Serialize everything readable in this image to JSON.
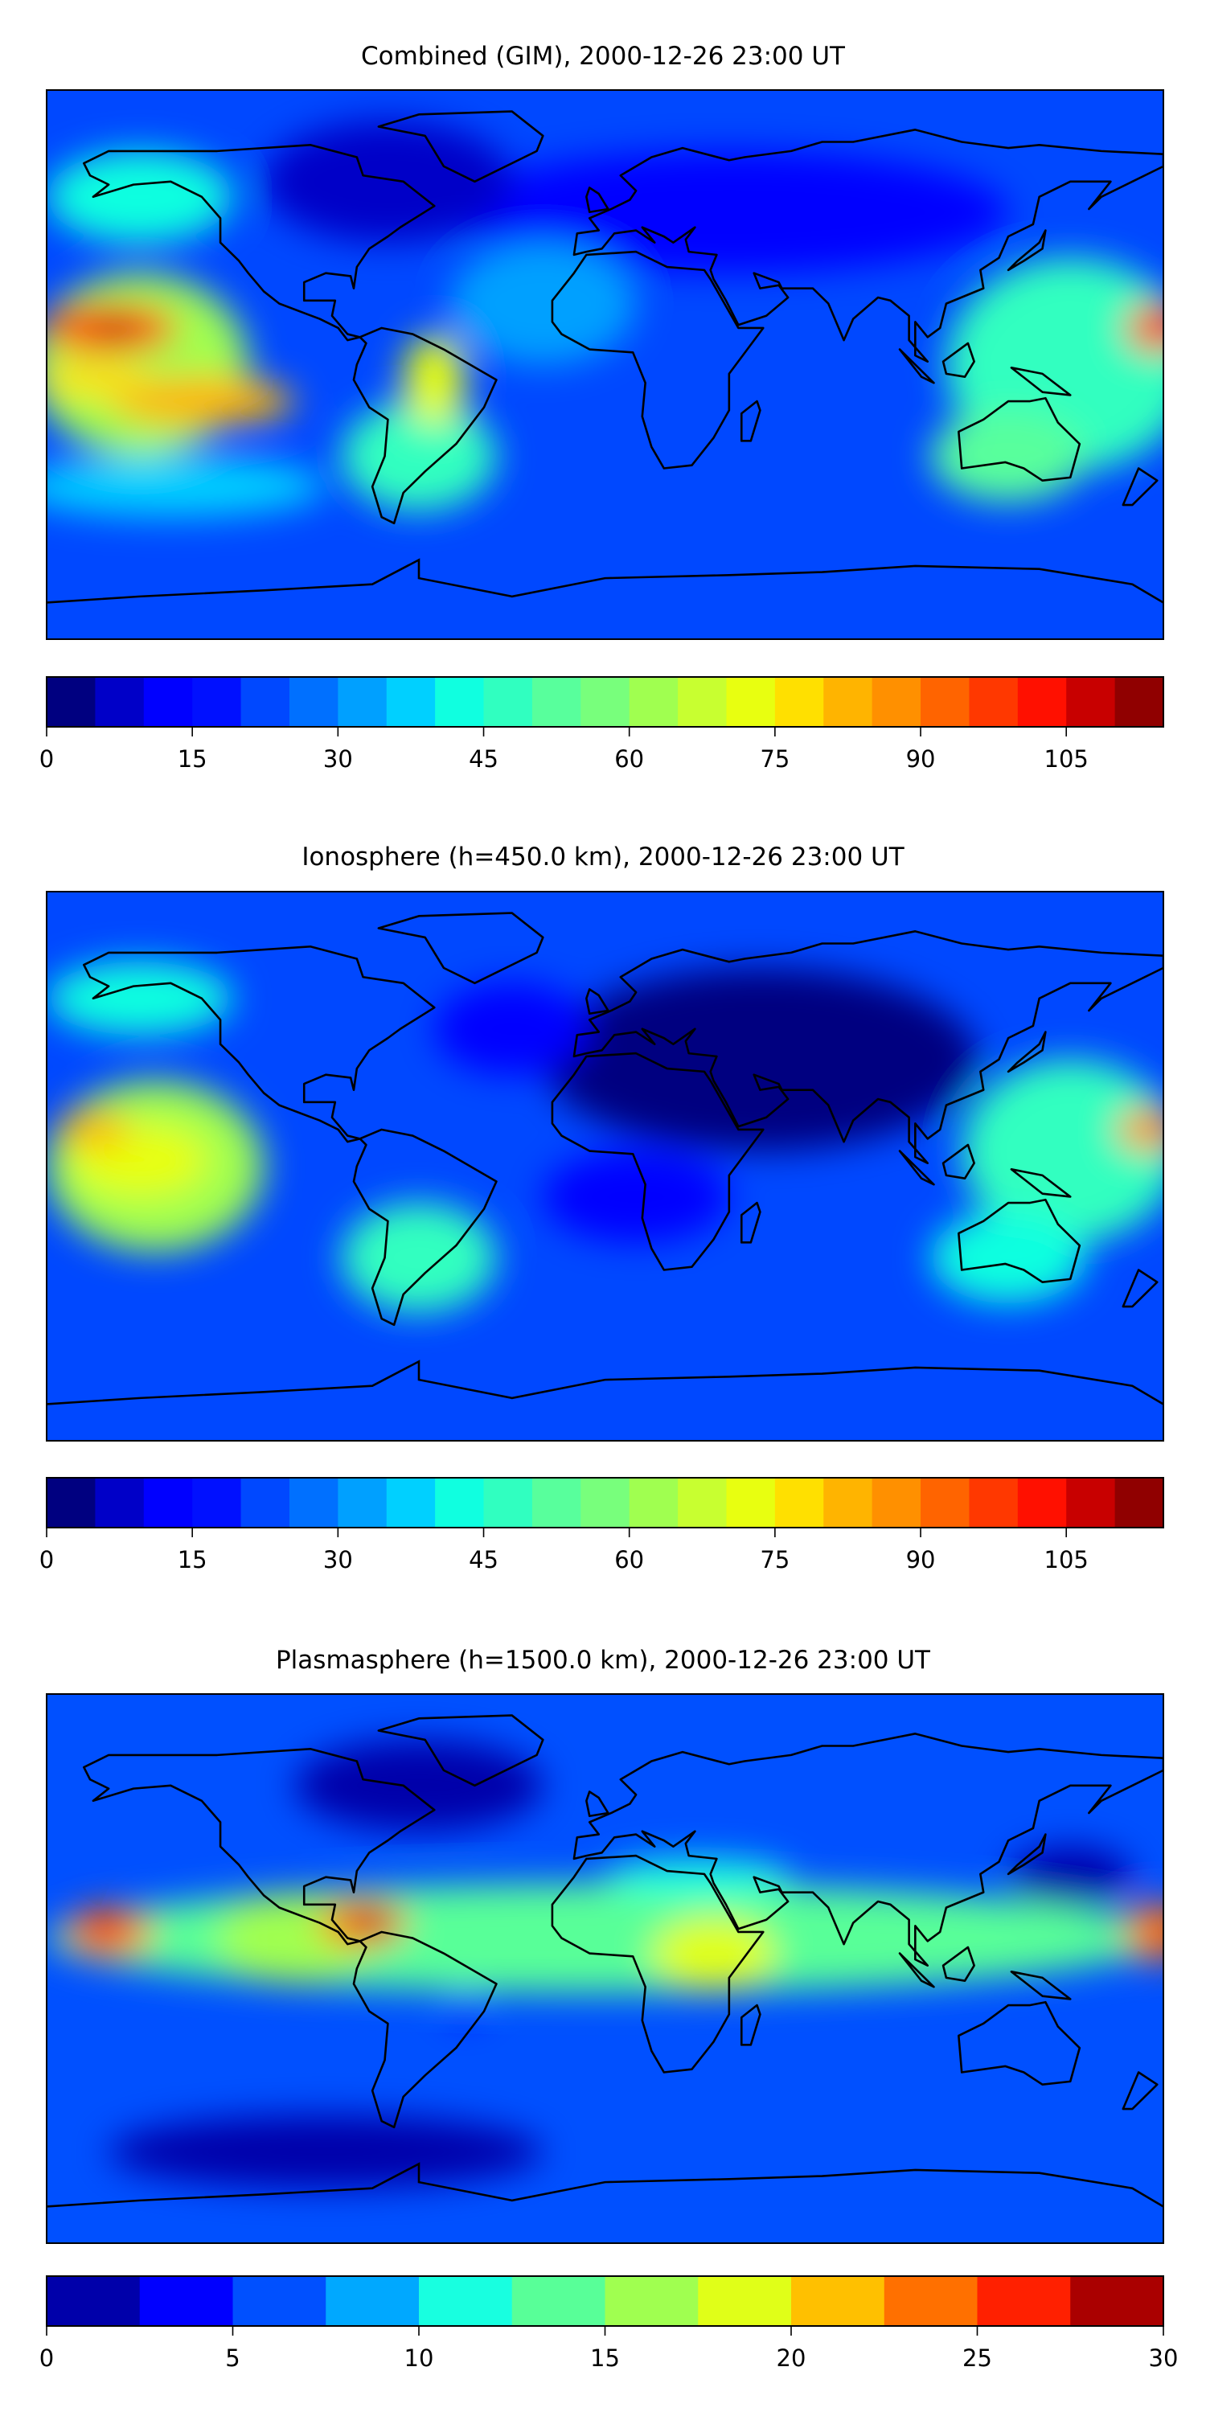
{
  "chart_data": [
    {
      "type": "heatmap",
      "title": "Combined (GIM), 2000-12-26 23:00 UT",
      "projection": "equirectangular",
      "lon_range": [
        -180,
        180
      ],
      "lat_range": [
        -90,
        90
      ],
      "colorbar": {
        "levels": [
          0,
          5,
          10,
          15,
          20,
          25,
          30,
          35,
          40,
          45,
          50,
          55,
          60,
          65,
          70,
          75,
          80,
          85,
          90,
          95,
          100,
          105,
          110,
          115
        ],
        "ticks": [
          "0",
          "15",
          "30",
          "45",
          "60",
          "75",
          "90",
          "105"
        ],
        "tick_values": [
          0,
          15,
          30,
          45,
          60,
          75,
          90,
          105
        ],
        "colors": [
          "#000080",
          "#0000c8",
          "#0000ff",
          "#0010ff",
          "#0048ff",
          "#0070ff",
          "#00a0ff",
          "#00d0ff",
          "#10ffe0",
          "#30ffc0",
          "#58ff9c",
          "#78ff7c",
          "#a0ff50",
          "#c8ff30",
          "#e8ff10",
          "#ffe000",
          "#ffb400",
          "#ff9000",
          "#ff6400",
          "#ff3800",
          "#ff1000",
          "#c80000",
          "#900000"
        ]
      },
      "background_value": 22,
      "features": [
        {
          "lon": 40,
          "lat": 50,
          "value": 12,
          "rlon": 90,
          "rlat": 20
        },
        {
          "lon": -70,
          "lat": 60,
          "value": 8,
          "rlon": 40,
          "rlat": 20
        },
        {
          "lon": -150,
          "lat": 55,
          "value": 40,
          "rlon": 30,
          "rlat": 15
        },
        {
          "lon": -20,
          "lat": 20,
          "value": 30,
          "rlon": 30,
          "rlat": 20
        },
        {
          "lon": 150,
          "lat": 0,
          "value": 48,
          "rlon": 40,
          "rlat": 35
        },
        {
          "lon": 130,
          "lat": -30,
          "value": 50,
          "rlon": 25,
          "rlat": 15
        },
        {
          "lon": -140,
          "lat": -40,
          "value": 38,
          "rlon": 50,
          "rlat": 10
        },
        {
          "lon": -60,
          "lat": -30,
          "value": 45,
          "rlon": 25,
          "rlat": 18
        },
        {
          "lon": -150,
          "lat": 0,
          "value": 62,
          "rlon": 35,
          "rlat": 30
        },
        {
          "lon": -130,
          "lat": -12,
          "value": 82,
          "rlon": 30,
          "rlat": 8
        },
        {
          "lon": -165,
          "lat": -5,
          "value": 75,
          "rlon": 18,
          "rlat": 6
        },
        {
          "lon": -55,
          "lat": -5,
          "value": 72,
          "rlon": 10,
          "rlat": 15
        },
        {
          "lon": -160,
          "lat": 12,
          "value": 98,
          "rlon": 22,
          "rlat": 8
        },
        {
          "lon": -158,
          "lat": 12,
          "value": 112,
          "rlon": 6,
          "rlat": 3
        },
        {
          "lon": 178,
          "lat": 12,
          "value": 95,
          "rlon": 10,
          "rlat": 8
        }
      ]
    },
    {
      "type": "heatmap",
      "title": "Ionosphere  (h=450.0 km), 2000-12-26 23:00 UT",
      "projection": "equirectangular",
      "lon_range": [
        -180,
        180
      ],
      "lat_range": [
        -90,
        90
      ],
      "colorbar": {
        "levels": [
          0,
          5,
          10,
          15,
          20,
          25,
          30,
          35,
          40,
          45,
          50,
          55,
          60,
          65,
          70,
          75,
          80,
          85,
          90,
          95,
          100,
          105,
          110,
          115
        ],
        "ticks": [
          "0",
          "15",
          "30",
          "45",
          "60",
          "75",
          "90",
          "105"
        ],
        "tick_values": [
          0,
          15,
          30,
          45,
          60,
          75,
          90,
          105
        ],
        "colors": [
          "#000080",
          "#0000c8",
          "#0000ff",
          "#0010ff",
          "#0048ff",
          "#0070ff",
          "#00a0ff",
          "#00d0ff",
          "#10ffe0",
          "#30ffc0",
          "#58ff9c",
          "#78ff7c",
          "#a0ff50",
          "#c8ff30",
          "#e8ff10",
          "#ffe000",
          "#ffb400",
          "#ff9000",
          "#ff6400",
          "#ff3800",
          "#ff1000",
          "#c80000",
          "#900000"
        ]
      },
      "background_value": 24,
      "features": [
        {
          "lon": 50,
          "lat": 35,
          "value": 4,
          "rlon": 70,
          "rlat": 30
        },
        {
          "lon": 10,
          "lat": -10,
          "value": 10,
          "rlon": 30,
          "rlat": 15
        },
        {
          "lon": -30,
          "lat": 45,
          "value": 12,
          "rlon": 25,
          "rlat": 15
        },
        {
          "lon": -150,
          "lat": 55,
          "value": 40,
          "rlon": 30,
          "rlat": 12
        },
        {
          "lon": -60,
          "lat": -30,
          "value": 45,
          "rlon": 25,
          "rlat": 18
        },
        {
          "lon": 150,
          "lat": 5,
          "value": 48,
          "rlon": 35,
          "rlat": 30
        },
        {
          "lon": 130,
          "lat": -30,
          "value": 40,
          "rlon": 25,
          "rlat": 15
        },
        {
          "lon": -145,
          "lat": 0,
          "value": 62,
          "rlon": 35,
          "rlat": 28
        },
        {
          "lon": -150,
          "lat": 2,
          "value": 72,
          "rlon": 22,
          "rlat": 12
        },
        {
          "lon": -165,
          "lat": 12,
          "value": 80,
          "rlon": 12,
          "rlat": 6
        },
        {
          "lon": 175,
          "lat": 12,
          "value": 85,
          "rlon": 10,
          "rlat": 7
        }
      ]
    },
    {
      "type": "heatmap",
      "title": "Plasmasphere (h=1500.0 km), 2000-12-26 23:00 UT",
      "projection": "equirectangular",
      "lon_range": [
        -180,
        180
      ],
      "lat_range": [
        -90,
        90
      ],
      "colorbar": {
        "levels": [
          0,
          2.5,
          5,
          7.5,
          10,
          12.5,
          15,
          17.5,
          20,
          22.5,
          25,
          27.5,
          30
        ],
        "ticks": [
          "0",
          "5",
          "10",
          "15",
          "20",
          "25",
          "30"
        ],
        "tick_values": [
          0,
          5,
          10,
          15,
          20,
          25,
          30
        ],
        "colors": [
          "#0000aa",
          "#0000ff",
          "#0050ff",
          "#00a8ff",
          "#18ffe0",
          "#58ff98",
          "#a0ff50",
          "#e0ff18",
          "#ffc000",
          "#ff7000",
          "#ff2000",
          "#aa0000"
        ]
      },
      "background_value": 6,
      "features": [
        {
          "lon": -60,
          "lat": 60,
          "value": 1,
          "rlon": 40,
          "rlat": 15
        },
        {
          "lon": -90,
          "lat": -60,
          "value": 1,
          "rlon": 70,
          "rlat": 12
        },
        {
          "lon": 150,
          "lat": 30,
          "value": 2,
          "rlon": 20,
          "rlat": 10
        },
        {
          "lon": 0,
          "lat": 10,
          "value": 13,
          "rlon": 180,
          "rlat": 18
        },
        {
          "lon": 30,
          "lat": 30,
          "value": 11,
          "rlon": 30,
          "rlat": 6
        },
        {
          "lon": 35,
          "lat": 5,
          "value": 18,
          "rlon": 20,
          "rlat": 12
        },
        {
          "lon": -100,
          "lat": 10,
          "value": 17,
          "rlon": 25,
          "rlat": 15
        },
        {
          "lon": -160,
          "lat": 12,
          "value": 24,
          "rlon": 14,
          "rlat": 8
        },
        {
          "lon": -162,
          "lat": 12,
          "value": 27,
          "rlon": 6,
          "rlat": 4
        },
        {
          "lon": -78,
          "lat": 15,
          "value": 24,
          "rlon": 14,
          "rlat": 8
        },
        {
          "lon": -75,
          "lat": 15,
          "value": 29,
          "rlon": 6,
          "rlat": 4
        },
        {
          "lon": -45,
          "lat": -12,
          "value": 4,
          "rlon": 6,
          "rlat": 5
        },
        {
          "lon": 178,
          "lat": 12,
          "value": 23,
          "rlon": 10,
          "rlat": 10
        }
      ]
    }
  ]
}
